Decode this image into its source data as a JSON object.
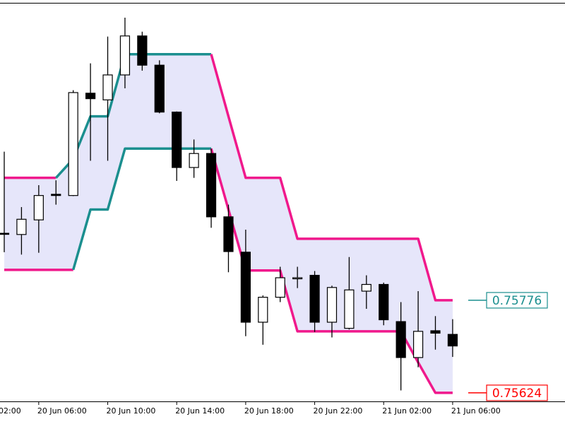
{
  "chart_data": {
    "type": "candlestick",
    "left_edge_label": "02:00",
    "categories": [
      null,
      null,
      "20 Jun 06:00",
      null,
      null,
      null,
      "20 Jun 10:00",
      null,
      null,
      null,
      "20 Jun 14:00",
      null,
      null,
      null,
      "20 Jun 18:00",
      null,
      null,
      null,
      "20 Jun 22:00",
      null,
      null,
      null,
      "21 Jun 02:00",
      null,
      null,
      null,
      "21 Jun 06:00"
    ],
    "open": [
      0.75886,
      0.75884,
      0.75908,
      0.7595,
      0.75948,
      0.76116,
      0.76105,
      0.76146,
      0.7621,
      0.76162,
      0.76085,
      0.75994,
      0.76017,
      0.75913,
      0.75855,
      0.7574,
      0.75781,
      0.75813,
      0.75817,
      0.7574,
      0.7573,
      0.75791,
      0.75802,
      0.75741,
      0.75682,
      0.75726,
      0.7572
    ],
    "high": [
      0.7602,
      0.75929,
      0.75965,
      0.75973,
      0.76121,
      0.76165,
      0.76209,
      0.7624,
      0.76217,
      0.7617,
      0.76086,
      0.7604,
      0.76025,
      0.75933,
      0.75892,
      0.75784,
      0.75831,
      0.75831,
      0.75824,
      0.758,
      0.75847,
      0.75817,
      0.75805,
      0.75773,
      0.75791,
      0.7575,
      0.75745
    ],
    "low": [
      0.75855,
      0.75851,
      0.75854,
      0.75933,
      0.75947,
      0.76005,
      0.76005,
      0.76124,
      0.76153,
      0.76083,
      0.75972,
      0.75977,
      0.75895,
      0.75822,
      0.75717,
      0.75703,
      0.75773,
      0.75796,
      0.75724,
      0.75715,
      0.75728,
      0.75762,
      0.75735,
      0.75628,
      0.75666,
      0.75695,
      0.75683
    ],
    "close": [
      0.75885,
      0.75909,
      0.75948,
      0.75948,
      0.76117,
      0.76107,
      0.76146,
      0.7621,
      0.76162,
      0.76085,
      0.75994,
      0.76017,
      0.75913,
      0.75856,
      0.7574,
      0.75781,
      0.75813,
      0.75813,
      0.7574,
      0.75797,
      0.75793,
      0.75802,
      0.75744,
      0.75682,
      0.75725,
      0.75722,
      0.75701
    ],
    "up_color": "#ffffff",
    "down_color": "#000000",
    "bands": {
      "upper": [
        0.75977,
        0.75977,
        0.75977,
        0.75977,
        0.76008,
        0.76078,
        0.76078,
        0.7618,
        0.7618,
        0.7618,
        0.7618,
        0.7618,
        0.7618,
        0.76078,
        0.75977,
        0.75977,
        0.75977,
        0.75877,
        0.75877,
        0.75877,
        0.75877,
        0.75877,
        0.75877,
        0.75877,
        0.75877,
        0.75776,
        0.75776
      ],
      "lower": [
        0.75826,
        0.75826,
        0.75826,
        0.75826,
        0.75826,
        0.75925,
        0.75925,
        0.76025,
        0.76025,
        0.76025,
        0.76025,
        0.76025,
        0.76025,
        0.75925,
        0.75825,
        0.75825,
        0.75825,
        0.75725,
        0.75725,
        0.75725,
        0.75725,
        0.75725,
        0.75725,
        0.75725,
        0.75674,
        0.75624,
        0.75624
      ]
    },
    "rising_color": "#1b8f8f",
    "falling_color": "#f0198c",
    "fill_color": "#e6e6fa",
    "upper_label_color": "#1b8f8f",
    "lower_label_color": "#ff0000",
    "ylim": [
      0.7561,
      0.76269
    ]
  }
}
